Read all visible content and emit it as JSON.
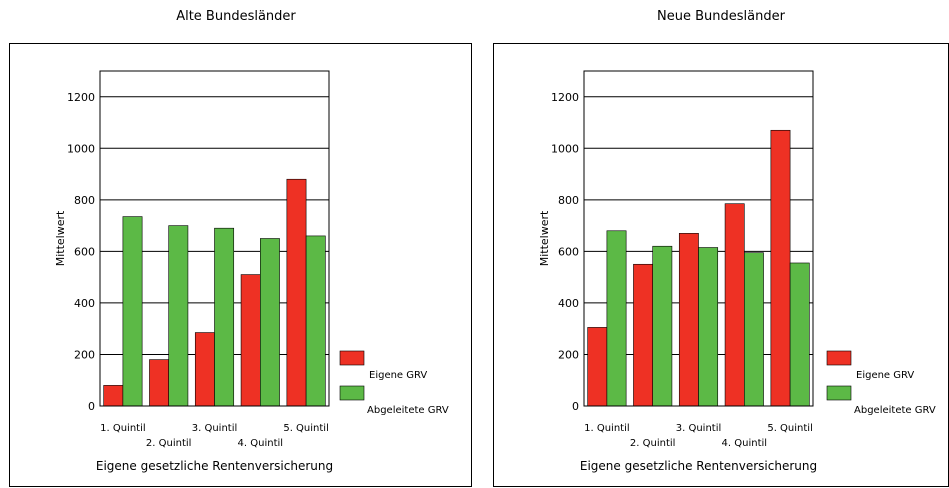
{
  "chart_data": [
    {
      "type": "bar",
      "title": "Alte Bundesländer",
      "xlabel": "Eigene gesetzliche Rentenversicherung",
      "ylabel": "Mittelwert",
      "ylim": [
        0,
        1300
      ],
      "yticks": [
        "0",
        "200",
        "400",
        "600",
        "800",
        "1000",
        "1200"
      ],
      "grid": "horizontal",
      "legend_position": "right",
      "categories": [
        "1. Quintil",
        "2. Quintil",
        "3. Quintil",
        "4. Quintil",
        "5. Quintil"
      ],
      "series": [
        {
          "name": "Eigene GRV",
          "color": "#ee3124",
          "values": [
            80,
            180,
            285,
            510,
            880
          ]
        },
        {
          "name": "Abgeleitete GRV",
          "color": "#5cb946",
          "values": [
            735,
            700,
            690,
            650,
            660
          ]
        }
      ]
    },
    {
      "type": "bar",
      "title": "Neue Bundesländer",
      "xlabel": "Eigene gesetzliche Rentenversicherung",
      "ylabel": "Mittelwert",
      "ylim": [
        0,
        1300
      ],
      "yticks": [
        "0",
        "200",
        "400",
        "600",
        "800",
        "1000",
        "1200"
      ],
      "grid": "horizontal",
      "legend_position": "right",
      "categories": [
        "1. Quintil",
        "2. Quintil",
        "3. Quintil",
        "4. Quintil",
        "5. Quintil"
      ],
      "series": [
        {
          "name": "Eigene GRV",
          "color": "#ee3124",
          "values": [
            305,
            550,
            670,
            785,
            1070
          ]
        },
        {
          "name": "Abgeleitete GRV",
          "color": "#5cb946",
          "values": [
            680,
            620,
            615,
            595,
            555
          ]
        }
      ]
    }
  ]
}
